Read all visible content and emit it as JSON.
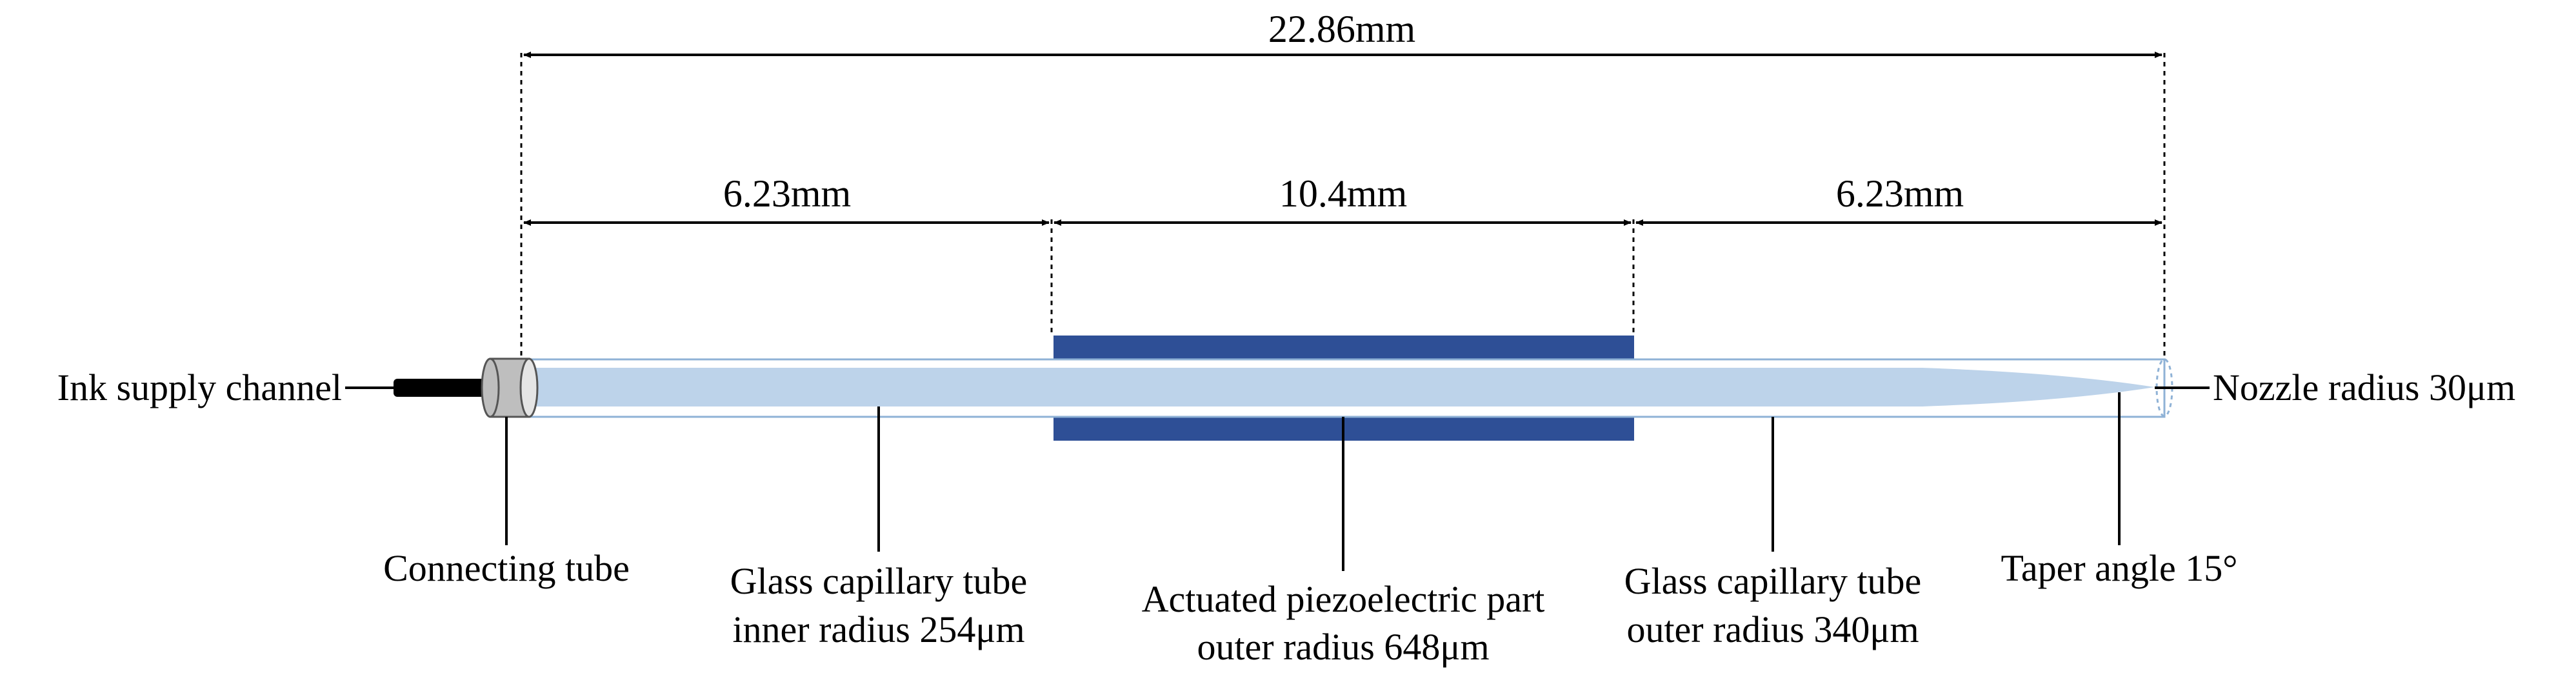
{
  "colors": {
    "capillary_inner": "#BDD3EA",
    "capillary_outer_stroke": "#8FB2D6",
    "piezo": "#2E4F96",
    "connector_fill": "#BEBEBE",
    "ink_channel": "#000000",
    "line": "#000000"
  },
  "dimensions": {
    "total": "22.86mm",
    "left_section": "6.23mm",
    "middle_section": "10.4mm",
    "right_section": "6.23mm"
  },
  "labels": {
    "ink_supply_channel": "Ink supply channel",
    "nozzle_radius": "Nozzle radius 30μm",
    "connecting_tube": "Connecting tube",
    "glass_inner_line1": "Glass capillary tube",
    "glass_inner_line2": "inner radius 254μm",
    "piezo_line1": "Actuated piezoelectric part",
    "piezo_line2": "outer radius 648μm",
    "glass_outer_line1": "Glass capillary tube",
    "glass_outer_line2": "outer radius 340μm",
    "taper_angle": "Taper angle 15°"
  }
}
